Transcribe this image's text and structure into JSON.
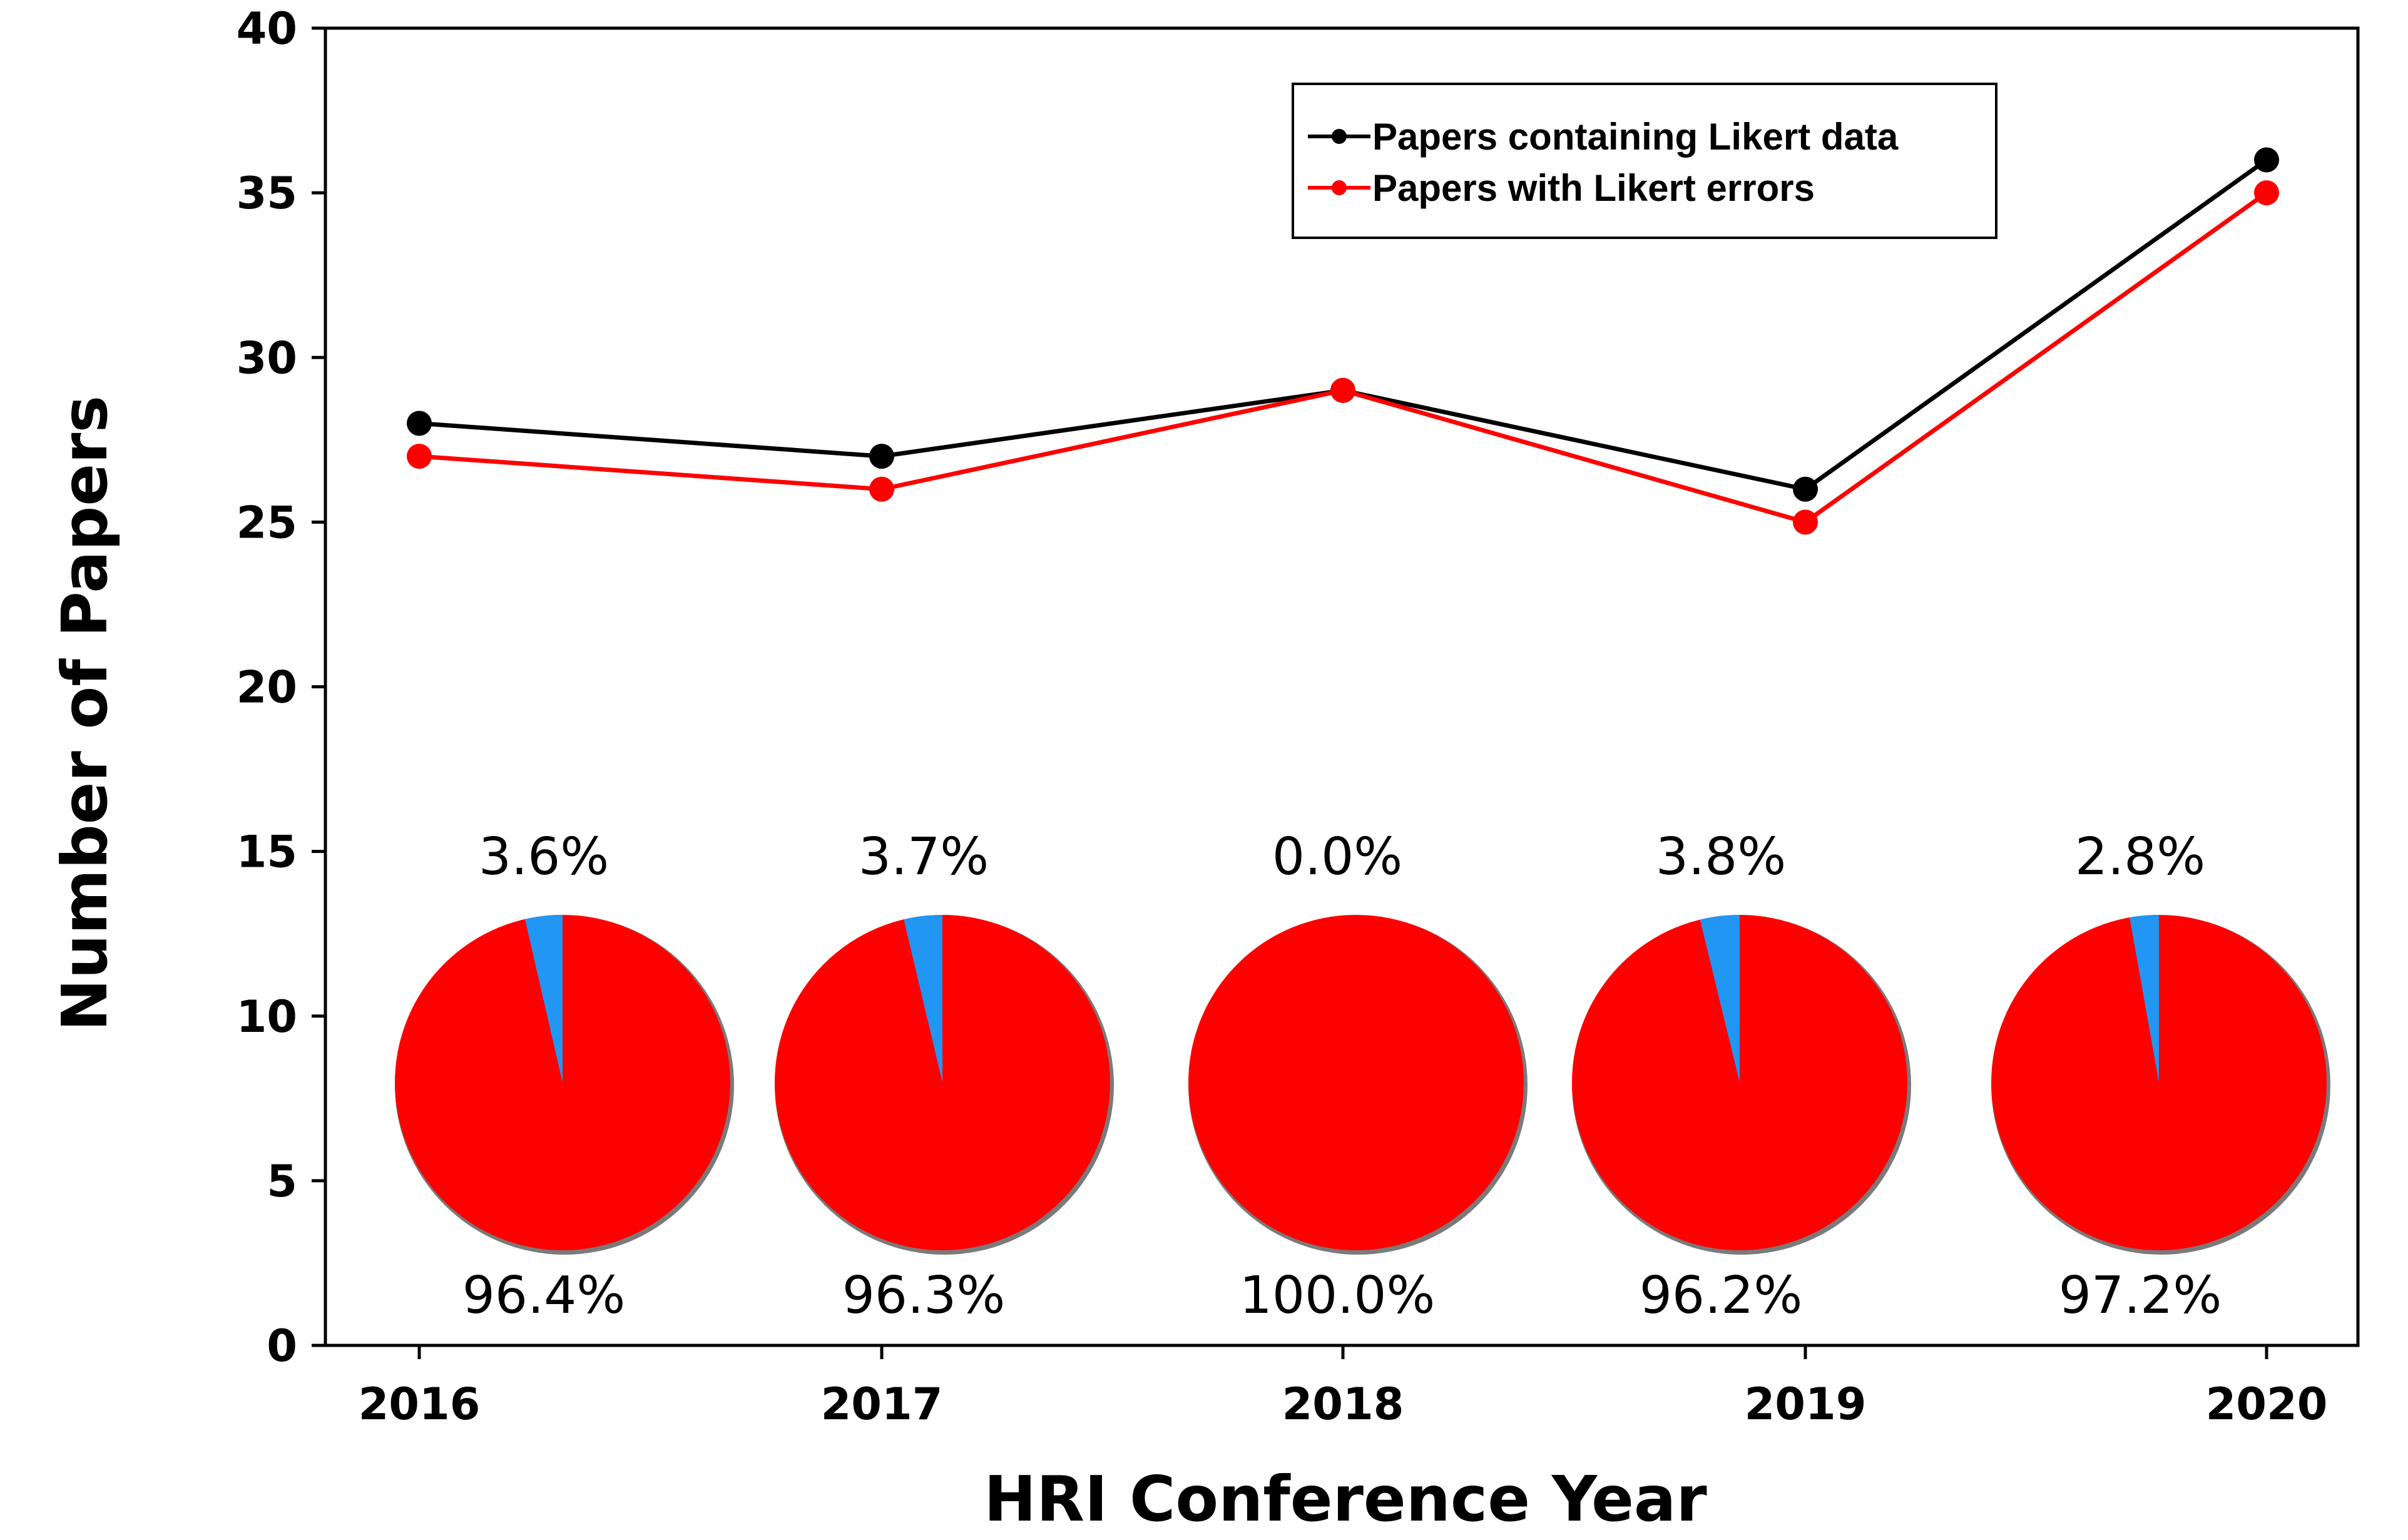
{
  "chart_data": [
    {
      "type": "line",
      "title": "",
      "xlabel": "HRI Conference Year",
      "ylabel": "Number of Papers",
      "categories": [
        "2016",
        "2017",
        "2018",
        "2019",
        "2020"
      ],
      "ylim": [
        0,
        40
      ],
      "yticks": [
        "0",
        "5",
        "10",
        "15",
        "20",
        "25",
        "30",
        "35",
        "40"
      ],
      "grid": false,
      "legend_position": "top-right",
      "series": [
        {
          "name": "Papers containing Likert data",
          "values": [
            28,
            27,
            29,
            26,
            36
          ],
          "color": "#000000"
        },
        {
          "name": "Papers with Likert errors",
          "values": [
            27,
            26,
            29,
            25,
            35
          ],
          "color": "#ff0000"
        }
      ]
    },
    {
      "type": "pie",
      "pies": [
        {
          "category": "2016",
          "slices": [
            {
              "value": 96.4,
              "label": "96.4%",
              "color": "#ff0000"
            },
            {
              "value": 3.6,
              "label": "3.6%",
              "color": "#2196f3"
            }
          ]
        },
        {
          "category": "2017",
          "slices": [
            {
              "value": 96.3,
              "label": "96.3%",
              "color": "#ff0000"
            },
            {
              "value": 3.7,
              "label": "3.7%",
              "color": "#2196f3"
            }
          ]
        },
        {
          "category": "2018",
          "slices": [
            {
              "value": 100.0,
              "label": "100.0%",
              "color": "#ff0000"
            },
            {
              "value": 0.0,
              "label": "0.0%",
              "color": "#2196f3"
            }
          ]
        },
        {
          "category": "2019",
          "slices": [
            {
              "value": 96.2,
              "label": "96.2%",
              "color": "#ff0000"
            },
            {
              "value": 3.8,
              "label": "3.8%",
              "color": "#2196f3"
            }
          ]
        },
        {
          "category": "2020",
          "slices": [
            {
              "value": 97.2,
              "label": "97.2%",
              "color": "#ff0000"
            },
            {
              "value": 2.8,
              "label": "2.8%",
              "color": "#2196f3"
            }
          ]
        }
      ]
    }
  ]
}
